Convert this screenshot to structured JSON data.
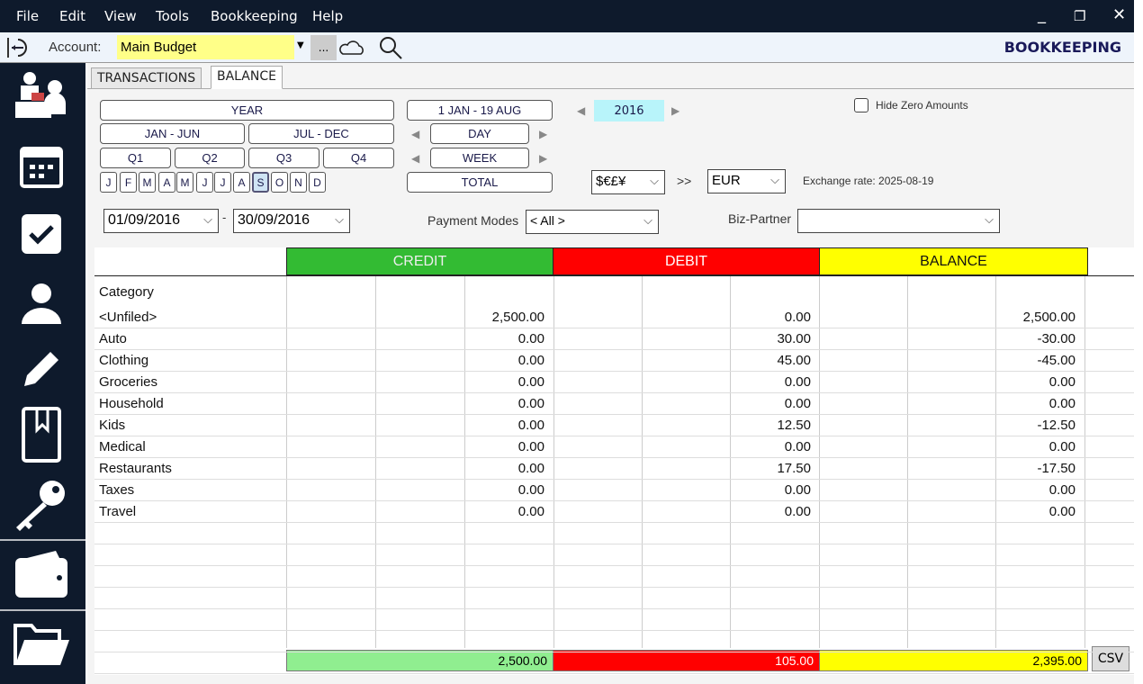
{
  "menu": [
    "File",
    "Edit",
    "View",
    "Tools",
    "Bookkeeping",
    "Help"
  ],
  "toolbar": {
    "account_label": "Account:",
    "account_value": "Main Budget",
    "more_label": "...",
    "app_title": "BOOKKEEPING"
  },
  "tabs": [
    {
      "label": "TRANSACTIONS",
      "active": false
    },
    {
      "label": "BALANCE",
      "active": true
    }
  ],
  "period": {
    "year": "YEAR",
    "jan_jun": "JAN - JUN",
    "jul_dec": "JUL - DEC",
    "quarters": [
      "Q1",
      "Q2",
      "Q3",
      "Q4"
    ],
    "months": [
      "J",
      "F",
      "M",
      "A",
      "M",
      "J",
      "J",
      "A",
      "S",
      "O",
      "N",
      "D"
    ],
    "selected_month": "S",
    "ytd": "1 JAN - 19 AUG",
    "day": "DAY",
    "week": "WEEK",
    "total": "TOTAL",
    "year_value": "2016"
  },
  "hide_zero": {
    "label": "Hide Zero Amounts",
    "checked": false
  },
  "currency": {
    "from": "$€£¥",
    "arrow": ">>",
    "to": "EUR",
    "exchange_rate": "Exchange rate: 2025-08-19"
  },
  "dates": {
    "from": "01/09/2016",
    "sep": "-",
    "to": "30/09/2016"
  },
  "payment_modes": {
    "label": "Payment Modes",
    "value": "< All >"
  },
  "biz_partner": {
    "label": "Biz-Partner",
    "value": ""
  },
  "table": {
    "headers": {
      "credit": "CREDIT",
      "debit": "DEBIT",
      "balance": "BALANCE",
      "category": "Category"
    },
    "colors": {
      "credit": "#33bb33",
      "debit": "#ff0000",
      "balance": "#ffff00",
      "credit_total": "#90ee90"
    },
    "rows": [
      {
        "category": "<Unfiled>",
        "credit": "2,500.00",
        "debit": "0.00",
        "balance": "2,500.00"
      },
      {
        "category": "Auto",
        "credit": "0.00",
        "debit": "30.00",
        "balance": "-30.00"
      },
      {
        "category": "Clothing",
        "credit": "0.00",
        "debit": "45.00",
        "balance": "-45.00"
      },
      {
        "category": "Groceries",
        "credit": "0.00",
        "debit": "0.00",
        "balance": "0.00"
      },
      {
        "category": "Household",
        "credit": "0.00",
        "debit": "0.00",
        "balance": "0.00"
      },
      {
        "category": "Kids",
        "credit": "0.00",
        "debit": "12.50",
        "balance": "-12.50"
      },
      {
        "category": "Medical",
        "credit": "0.00",
        "debit": "0.00",
        "balance": "0.00"
      },
      {
        "category": "Restaurants",
        "credit": "0.00",
        "debit": "17.50",
        "balance": "-17.50"
      },
      {
        "category": "Taxes",
        "credit": "0.00",
        "debit": "0.00",
        "balance": "0.00"
      },
      {
        "category": "Travel",
        "credit": "0.00",
        "debit": "0.00",
        "balance": "0.00"
      }
    ],
    "totals": {
      "credit": "2,500.00",
      "debit": "105.00",
      "balance": "2,395.00"
    },
    "csv_label": "CSV"
  }
}
